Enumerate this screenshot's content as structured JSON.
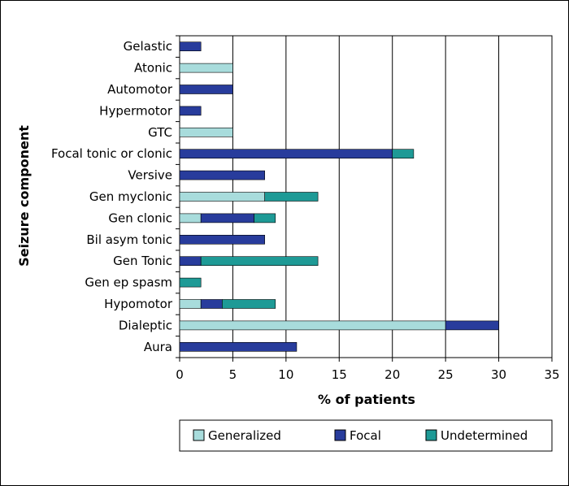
{
  "chart_data": {
    "type": "bar",
    "orientation": "horizontal",
    "stacked": true,
    "xlabel": "% of patients",
    "ylabel": "Seizure component",
    "xlim": [
      0,
      35
    ],
    "xticks": [
      0,
      5,
      10,
      15,
      20,
      25,
      30,
      35
    ],
    "grid": "vertical",
    "legend_position": "bottom",
    "categories": [
      "Gelastic",
      "Atonic",
      "Automotor",
      "Hypermotor",
      "GTC",
      "Focal tonic or clonic",
      "Versive",
      "Gen myclonic",
      "Gen clonic",
      "Bil asym tonic",
      "Gen Tonic",
      "Gen ep spasm",
      "Hypomotor",
      "Dialeptic",
      "Aura"
    ],
    "series": [
      {
        "name": "Generalized",
        "color": "#a8dcdc",
        "values": [
          0,
          5,
          0,
          0,
          5,
          0,
          0,
          8,
          2,
          0,
          0,
          0,
          2,
          25,
          0
        ]
      },
      {
        "name": "Focal",
        "color": "#283c9c",
        "values": [
          2,
          0,
          5,
          2,
          0,
          20,
          8,
          0,
          5,
          8,
          2,
          0,
          2,
          5,
          11
        ]
      },
      {
        "name": "Undetermined",
        "color": "#1e9a96",
        "values": [
          0,
          0,
          0,
          0,
          0,
          2,
          0,
          5,
          2,
          0,
          11,
          2,
          5,
          0,
          0
        ]
      }
    ]
  }
}
